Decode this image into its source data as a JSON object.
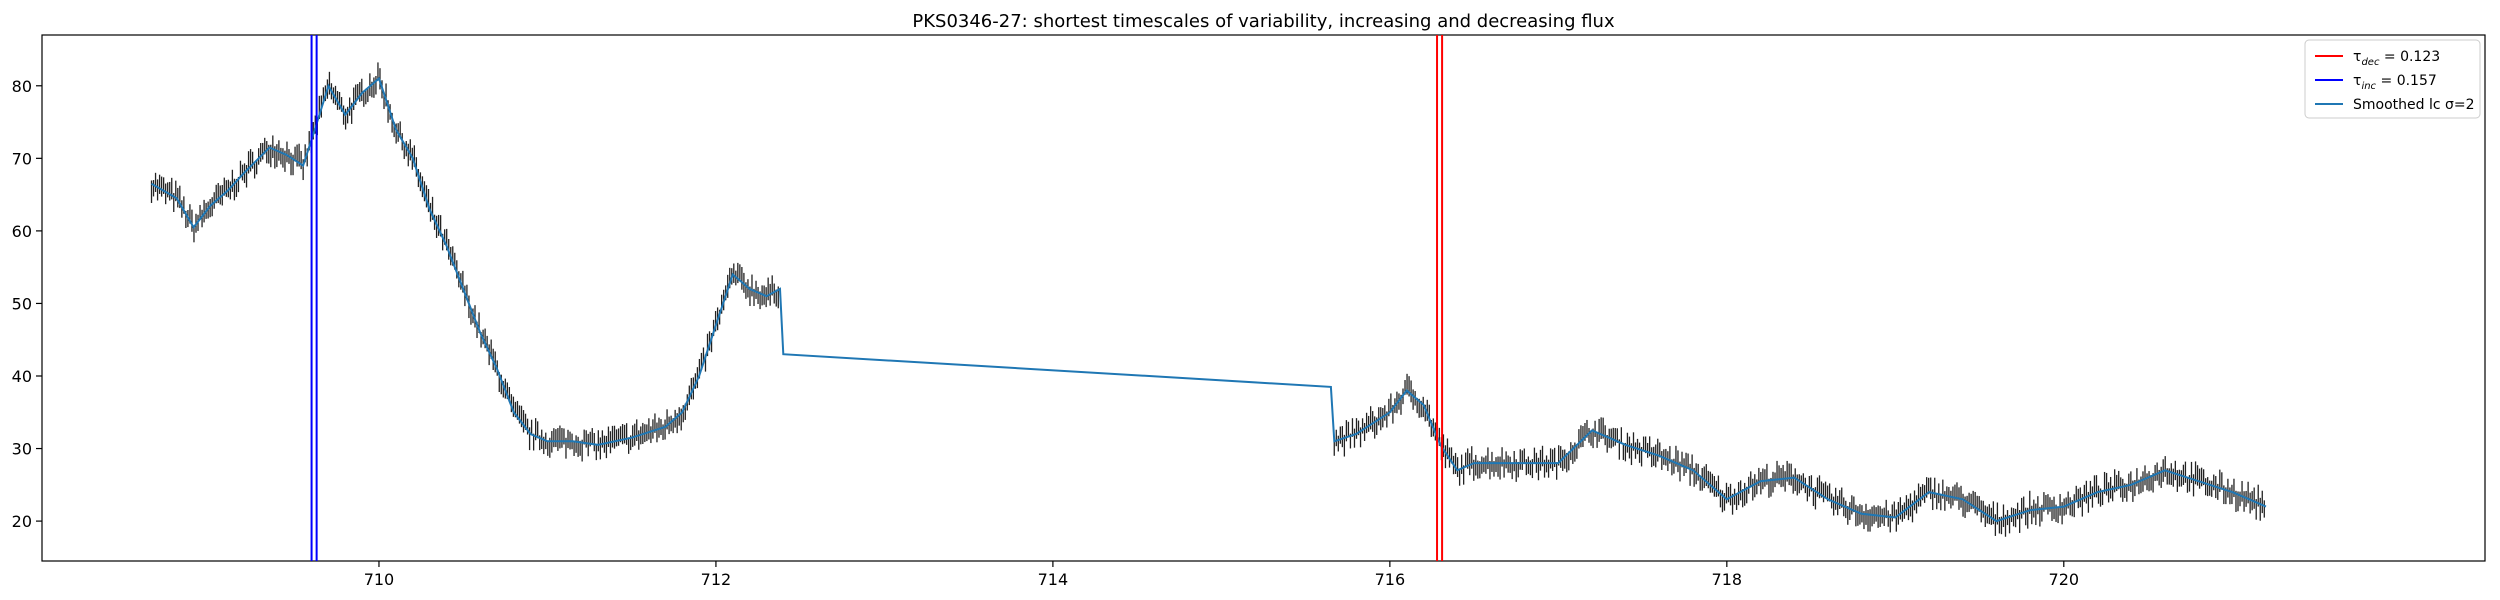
{
  "chart_data": {
    "type": "line",
    "title": "PKS0346-27: shortest timescales of variability, increasing and decreasing flux",
    "xlabel": "",
    "ylabel": "",
    "xlim": [
      708.0,
      722.5
    ],
    "ylim": [
      14.5,
      87.0
    ],
    "xticks": [
      710,
      712,
      714,
      716,
      718,
      720
    ],
    "yticks": [
      20,
      30,
      40,
      50,
      60,
      70,
      80
    ],
    "grid": false,
    "legend_position": "top-right",
    "vlines": {
      "increasing": {
        "x": [
          709.6,
          709.63
        ],
        "color": "#0000ff"
      },
      "decreasing": {
        "x": [
          716.28,
          716.31
        ],
        "color": "#ff0000"
      }
    },
    "legend": [
      {
        "sym": "τ",
        "sub": "dec",
        "rest": " = 0.123",
        "color": "#ff0000",
        "kind": "line"
      },
      {
        "sym": "τ",
        "sub": "inc",
        "rest": " = 0.157",
        "color": "#0000ff",
        "kind": "line"
      },
      {
        "sym": "",
        "sub": "",
        "rest": "Smoothed lc σ=2",
        "color": "#1f77b4",
        "kind": "line"
      }
    ],
    "series": [
      {
        "name": "Smoothed lc σ=2",
        "color": "#1f77b4",
        "x": [
          708.65,
          708.8,
          708.9,
          709.0,
          709.1,
          709.2,
          709.35,
          709.45,
          709.55,
          709.62,
          709.7,
          709.8,
          709.9,
          710.0,
          710.1,
          710.2,
          710.3,
          710.4,
          710.5,
          710.6,
          710.7,
          710.8,
          710.9,
          711.0,
          711.15,
          711.3,
          711.5,
          711.7,
          711.8,
          711.9,
          712.0,
          712.1,
          712.2,
          712.3,
          712.38,
          712.4,
          715.65,
          715.67,
          715.8,
          716.0,
          716.1,
          716.2,
          716.3,
          716.4,
          716.5,
          716.65,
          716.8,
          717.0,
          717.2,
          717.4,
          717.6,
          717.8,
          718.0,
          718.2,
          718.4,
          718.6,
          718.8,
          719.0,
          719.2,
          719.4,
          719.6,
          719.8,
          720.0,
          720.2,
          720.4,
          720.6,
          720.8,
          721.0,
          721.2
        ],
        "y": [
          66.5,
          64.5,
          60.5,
          63.5,
          65.5,
          68,
          71.5,
          70.5,
          69,
          74,
          80,
          76,
          79,
          81,
          74,
          70,
          63,
          58,
          52,
          46,
          41,
          35,
          32,
          31,
          31,
          30.5,
          31.5,
          33,
          35,
          40,
          47,
          54,
          52,
          51,
          52,
          43,
          38.5,
          31,
          32,
          35,
          38,
          36,
          30.5,
          27,
          28,
          28,
          28,
          28,
          32.5,
          30.5,
          29,
          27,
          23,
          25.5,
          26,
          23,
          21,
          20.5,
          24,
          23,
          20,
          21.5,
          22,
          24,
          25,
          27,
          25.5,
          24,
          22
        ]
      }
    ]
  }
}
